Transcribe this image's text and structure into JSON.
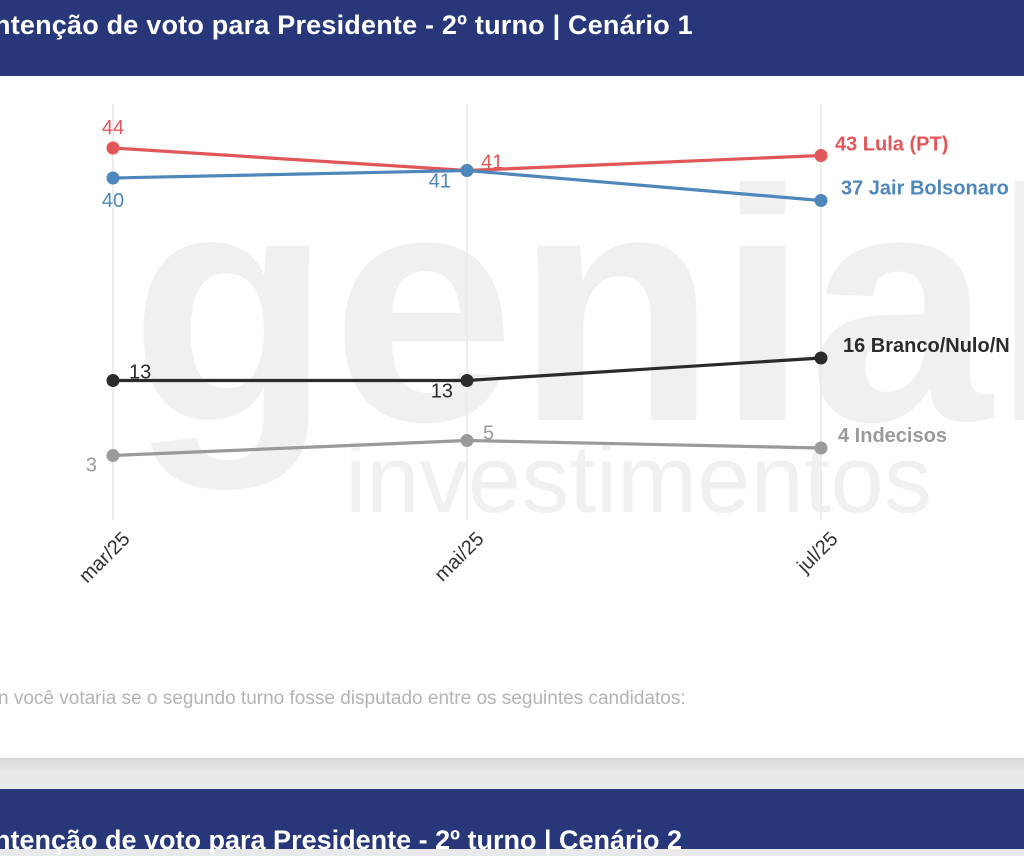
{
  "header": {
    "title": "ntenção de voto para Presidente - 2º turno | Cenário 1"
  },
  "next_header": {
    "title": "ntenção de voto para Presidente - 2º turno | Cenário 2"
  },
  "question": "n você votaria se o segundo turno fosse disputado entre os seguintes candidatos:",
  "watermark": {
    "main": "genial",
    "sub": "investimentos"
  },
  "chart_data": {
    "type": "line",
    "title": "ntenção de voto para Presidente - 2º turno | Cenário 1",
    "categories": [
      "mar/25",
      "mai/25",
      "jul/25"
    ],
    "ylim": [
      0,
      50
    ],
    "grid": "vertical",
    "series": [
      {
        "name": "Lula (PT)",
        "color": "#e15759",
        "values": [
          44,
          41,
          43
        ],
        "labels": [
          "44",
          "41",
          "43 Lula (PT)"
        ]
      },
      {
        "name": "Jair Bolsonaro",
        "color": "#4e87bb",
        "values": [
          40,
          41,
          37
        ],
        "labels": [
          "40",
          "41",
          "37 Jair Bolsonaro"
        ]
      },
      {
        "name": "Branco/Nulo/N",
        "color": "#2b2b2b",
        "values": [
          13,
          13,
          16
        ],
        "labels": [
          "13",
          "13",
          "16 Branco/Nulo/N"
        ]
      },
      {
        "name": "Indecisos",
        "color": "#9a9a9a",
        "values": [
          3,
          5,
          4
        ],
        "labels": [
          "3",
          "5",
          "4 Indecisos"
        ]
      }
    ]
  }
}
